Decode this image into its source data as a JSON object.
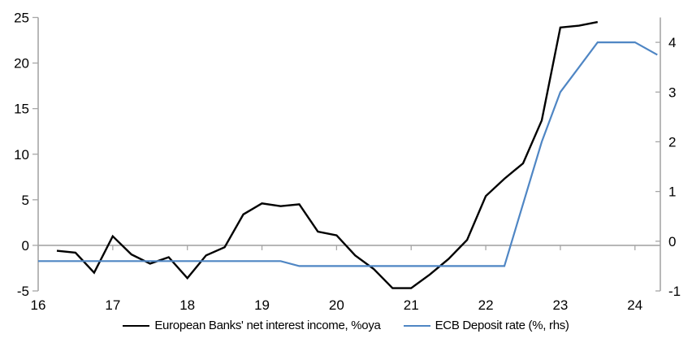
{
  "chart_data": {
    "type": "line",
    "title": "",
    "x_axis": {
      "tick_labels": [
        "16",
        "17",
        "18",
        "19",
        "20",
        "21",
        "22",
        "23",
        "24"
      ],
      "tick_values": [
        16,
        17,
        18,
        19,
        20,
        21,
        22,
        23,
        24
      ],
      "range": [
        16,
        24.34
      ]
    },
    "left_axis": {
      "tick_values": [
        25,
        20,
        15,
        10,
        5,
        0,
        -5
      ],
      "range": [
        -5,
        25
      ]
    },
    "right_axis": {
      "tick_values": [
        4,
        3,
        2,
        1,
        0,
        -1
      ],
      "range": [
        -1,
        4.5
      ]
    },
    "gridlines": "zero-line-only",
    "legend_position": "bottom-center",
    "series": [
      {
        "name": "European Banks' net interest income, %oya",
        "axis": "left",
        "color": "#000000",
        "x": [
          16.25,
          16.5,
          16.75,
          17.0,
          17.25,
          17.5,
          17.75,
          18.0,
          18.25,
          18.5,
          18.75,
          19.0,
          19.25,
          19.5,
          19.75,
          20.0,
          20.25,
          20.5,
          20.75,
          21.0,
          21.25,
          21.5,
          21.75,
          22.0,
          22.25,
          22.5,
          22.75,
          23.0,
          23.25,
          23.5
        ],
        "values": [
          -0.6,
          -0.8,
          -3.0,
          1.0,
          -1.0,
          -2.0,
          -1.3,
          -3.6,
          -1.1,
          -0.2,
          3.4,
          4.6,
          4.3,
          4.5,
          1.5,
          1.1,
          -1.1,
          -2.6,
          -4.7,
          -4.7,
          -3.2,
          -1.5,
          0.6,
          5.4,
          7.3,
          9.0,
          13.7,
          23.9,
          24.1,
          24.5
        ]
      },
      {
        "name": "ECB Deposit rate (%, rhs)",
        "axis": "right",
        "color": "#4f86c4",
        "x": [
          16.0,
          16.25,
          16.5,
          16.75,
          17.0,
          17.25,
          17.5,
          17.75,
          18.0,
          18.25,
          18.5,
          18.75,
          19.0,
          19.25,
          19.5,
          19.75,
          20.0,
          20.25,
          20.5,
          20.75,
          21.0,
          21.25,
          21.5,
          21.75,
          22.0,
          22.25,
          22.5,
          22.75,
          23.0,
          23.25,
          23.5,
          23.75,
          24.0,
          24.3
        ],
        "values": [
          -0.4,
          -0.4,
          -0.4,
          -0.4,
          -0.4,
          -0.4,
          -0.4,
          -0.4,
          -0.4,
          -0.4,
          -0.4,
          -0.4,
          -0.4,
          -0.4,
          -0.5,
          -0.5,
          -0.5,
          -0.5,
          -0.5,
          -0.5,
          -0.5,
          -0.5,
          -0.5,
          -0.5,
          -0.5,
          -0.5,
          0.75,
          2.0,
          3.0,
          3.5,
          4.0,
          4.0,
          4.0,
          3.75
        ]
      }
    ],
    "colors": {
      "axis_gray": "#a6a6a6",
      "text": "#000000",
      "background": "#ffffff"
    }
  }
}
